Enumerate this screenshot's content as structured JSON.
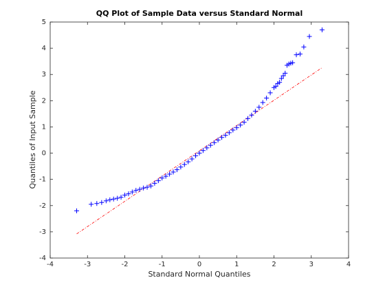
{
  "chart_data": {
    "type": "scatter",
    "title": "QQ Plot of Sample Data versus Standard Normal",
    "xlabel": "Standard Normal Quantiles",
    "ylabel": "Quantiles of Input Sample",
    "x": [
      -3.29,
      -2.9,
      -2.75,
      -2.62,
      -2.5,
      -2.4,
      -2.3,
      -2.2,
      -2.1,
      -2.0,
      -1.9,
      -1.8,
      -1.7,
      -1.6,
      -1.5,
      -1.4,
      -1.3,
      -1.2,
      -1.1,
      -1.0,
      -0.9,
      -0.8,
      -0.7,
      -0.6,
      -0.5,
      -0.4,
      -0.3,
      -0.2,
      -0.1,
      0,
      0.1,
      0.2,
      0.3,
      0.4,
      0.5,
      0.6,
      0.7,
      0.8,
      0.9,
      1.0,
      1.1,
      1.2,
      1.3,
      1.4,
      1.5,
      1.6,
      1.7,
      1.8,
      1.9,
      2.0,
      2.05,
      2.1,
      2.15,
      2.2,
      2.25,
      2.3,
      2.35,
      2.4,
      2.45,
      2.5,
      2.6,
      2.7,
      2.8,
      2.95,
      3.29
    ],
    "values": [
      -2.2,
      -1.95,
      -1.92,
      -1.88,
      -1.82,
      -1.78,
      -1.75,
      -1.72,
      -1.68,
      -1.6,
      -1.55,
      -1.48,
      -1.42,
      -1.38,
      -1.33,
      -1.3,
      -1.25,
      -1.15,
      -1.05,
      -0.95,
      -0.88,
      -0.8,
      -0.72,
      -0.63,
      -0.53,
      -0.43,
      -0.33,
      -0.22,
      -0.1,
      0,
      0.1,
      0.2,
      0.3,
      0.4,
      0.5,
      0.6,
      0.68,
      0.78,
      0.88,
      0.97,
      1.07,
      1.18,
      1.32,
      1.45,
      1.6,
      1.75,
      1.93,
      2.1,
      2.3,
      2.5,
      2.55,
      2.65,
      2.7,
      2.85,
      2.95,
      3.05,
      3.35,
      3.4,
      3.43,
      3.45,
      3.75,
      3.78,
      4.05,
      4.45,
      4.7
    ],
    "color": "#0000ff",
    "reference_line": {
      "x": [
        -3.29,
        3.29
      ],
      "y": [
        -3.08,
        3.26
      ],
      "color": "#ff0000"
    },
    "xlim": [
      -4,
      4
    ],
    "xticks": [
      -4,
      -3,
      -2,
      -1,
      0,
      1,
      2,
      3,
      4
    ],
    "ylim": [
      -4,
      5
    ],
    "yticks": [
      -4,
      -3,
      -2,
      -1,
      0,
      1,
      2,
      3,
      4,
      5
    ]
  }
}
